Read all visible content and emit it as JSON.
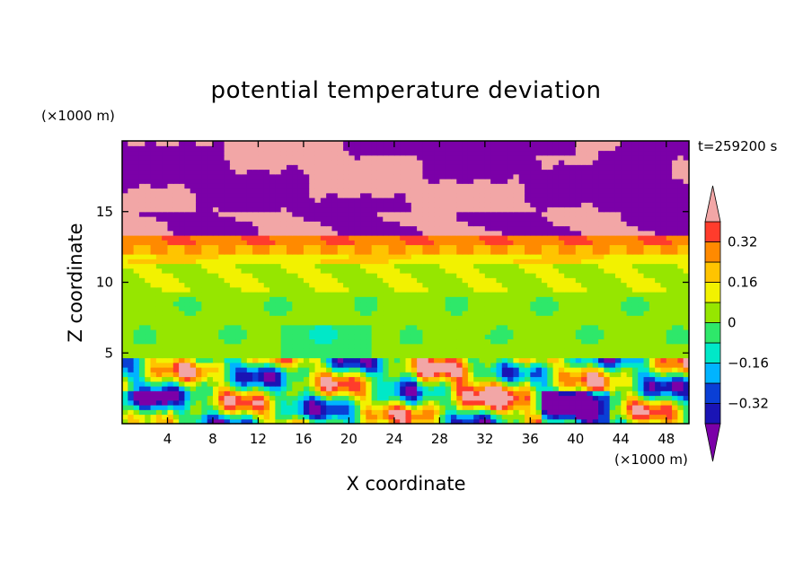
{
  "title": "potential temperature deviation",
  "y_multiplier": "(×1000 m)",
  "x_multiplier": "(×1000 m)",
  "time_label": "t=259200 s",
  "colors": [
    "#7b00a8",
    "#1a14b5",
    "#0a3fd6",
    "#00b4ff",
    "#00e8c8",
    "#2ee86a",
    "#96e600",
    "#f2f200",
    "#ffc400",
    "#ff8a00",
    "#ff3c2c",
    "#f2a6a6"
  ],
  "chart_data": {
    "type": "heatmap",
    "title": "potential temperature deviation",
    "xlabel": "X coordinate",
    "ylabel": "Z coordinate",
    "x_unit_note": "(×1000 m)",
    "y_unit_note": "(×1000 m)",
    "xlim": [
      0,
      50
    ],
    "ylim": [
      0,
      20
    ],
    "x_ticks": [
      4,
      8,
      12,
      16,
      20,
      24,
      28,
      32,
      36,
      40,
      44,
      48
    ],
    "y_ticks": [
      5,
      10,
      15
    ],
    "colorbar": {
      "levels": [
        -0.4,
        -0.32,
        -0.24,
        -0.16,
        -0.08,
        0,
        0.08,
        0.16,
        0.24,
        0.32,
        0.4
      ],
      "tick_labels": [
        "0.32",
        "0.16",
        "0",
        "−0.16",
        "−0.32"
      ],
      "tick_values": [
        0.32,
        0.16,
        0,
        -0.16,
        -0.32
      ],
      "extend": "both"
    },
    "bands": [
      {
        "z_range": [
          0,
          4.8
        ],
        "description_value_range": [
          -0.4,
          0.4
        ]
      },
      {
        "z_range": [
          4.8,
          9.5
        ],
        "dominant_value": 0.04
      },
      {
        "z_range": [
          9.5,
          11.5
        ],
        "dominant_value": 0.06
      },
      {
        "z_range": [
          11.5,
          13.5
        ],
        "dominant_value": 0.3
      },
      {
        "z_range": [
          13.5,
          20
        ],
        "dominant_value_range": [
          -0.4,
          0.4
        ]
      }
    ],
    "grid": false
  },
  "labels": {
    "xlabel": "X coordinate",
    "ylabel": "Z coordinate"
  }
}
